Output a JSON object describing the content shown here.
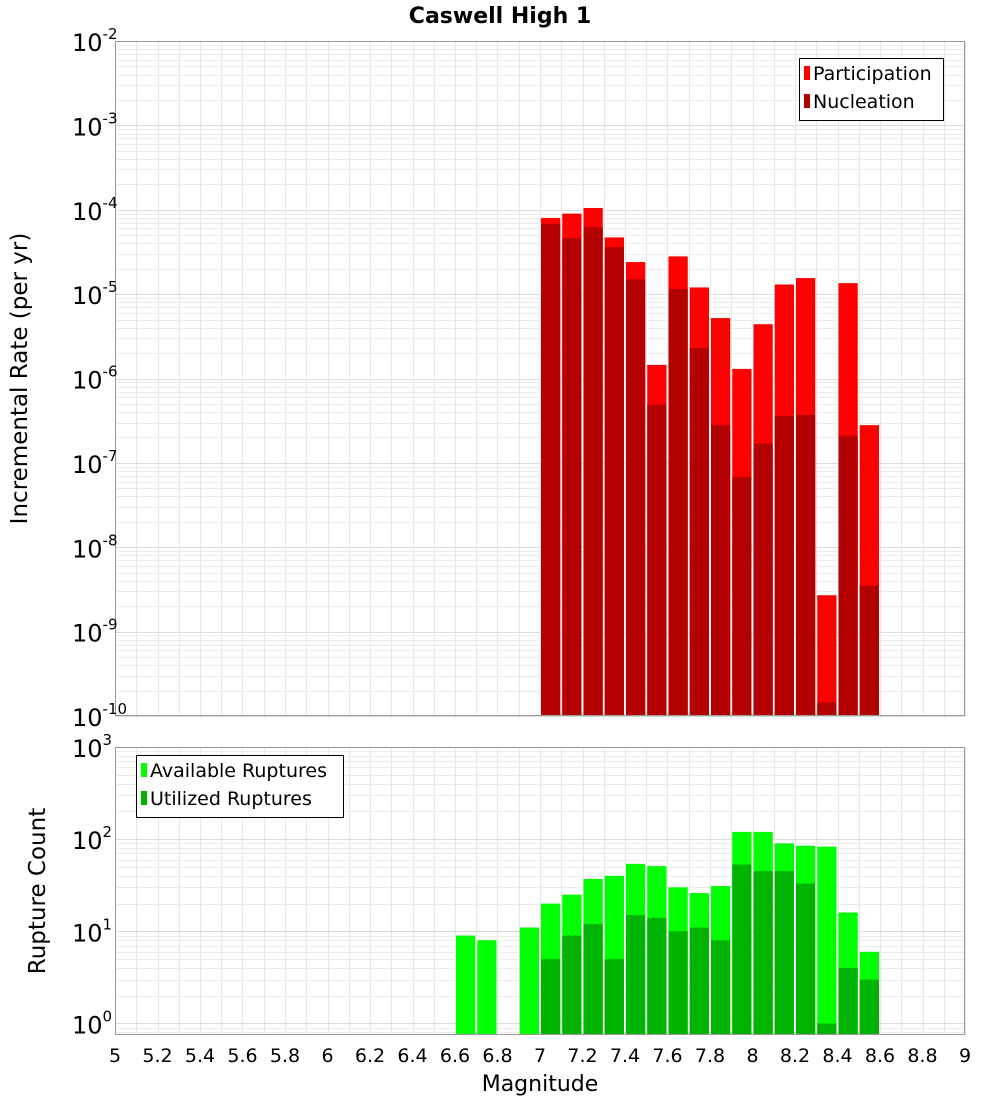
{
  "chart_data": [
    {
      "type": "bar",
      "title": "Caswell High 1",
      "xlabel": "",
      "ylabel": "Incremental Rate (per yr)",
      "yscale": "log",
      "xlim": [
        5,
        9
      ],
      "ylim": [
        1e-10,
        0.01
      ],
      "grid": true,
      "legend_position": "top-right",
      "y_tick_base": "10",
      "y_tick_exponents": [
        "-10",
        "-9",
        "-8",
        "-7",
        "-6",
        "-5",
        "-4",
        "-3",
        "-2"
      ],
      "x": [
        7.0,
        7.1,
        7.2,
        7.3,
        7.4,
        7.5,
        7.6,
        7.7,
        7.8,
        7.9,
        8.0,
        8.1,
        8.2,
        8.3,
        8.4,
        8.5
      ],
      "series": [
        {
          "name": "Participation",
          "color": "#ff0000",
          "values": [
            8e-05,
            9e-05,
            0.000105,
            4.7e-05,
            2.4e-05,
            1.45e-06,
            2.8e-05,
            1.2e-05,
            5.2e-06,
            1.3e-06,
            4.4e-06,
            1.3e-05,
            1.55e-05,
            2.7e-09,
            1.35e-05,
            2.8e-07
          ]
        },
        {
          "name": "Nucleation",
          "color": "#b30000",
          "values": [
            6.8e-05,
            4.6e-05,
            6.2e-05,
            3.6e-05,
            1.5e-05,
            4.9e-07,
            1.15e-05,
            2.3e-06,
            2.8e-07,
            6.8e-08,
            1.7e-07,
            3.6e-07,
            3.7e-07,
            1.45e-10,
            2.1e-07,
            3.5e-09
          ]
        }
      ]
    },
    {
      "type": "bar",
      "title": "",
      "xlabel": "Magnitude",
      "ylabel": "Rupture Count",
      "yscale": "log",
      "xlim": [
        5,
        9
      ],
      "ylim": [
        0.75,
        1000
      ],
      "grid": true,
      "legend_position": "top-left",
      "x_ticks": [
        "5",
        "5.2",
        "5.4",
        "5.6",
        "5.8",
        "6",
        "6.2",
        "6.4",
        "6.6",
        "6.8",
        "7",
        "7.2",
        "7.4",
        "7.6",
        "7.8",
        "8",
        "8.2",
        "8.4",
        "8.6",
        "8.8",
        "9"
      ],
      "y_tick_base": "10",
      "y_tick_exponents": [
        "0",
        "1",
        "2",
        "3"
      ],
      "x": [
        6.6,
        6.7,
        6.9,
        7.0,
        7.1,
        7.2,
        7.3,
        7.4,
        7.5,
        7.6,
        7.7,
        7.8,
        7.9,
        8.0,
        8.1,
        8.2,
        8.3,
        8.4,
        8.5
      ],
      "series": [
        {
          "name": "Available Ruptures",
          "color": "#00ff00",
          "values": [
            9,
            8,
            11,
            20,
            25,
            37,
            40,
            54,
            51,
            30,
            26,
            31,
            120,
            120,
            90,
            85,
            83,
            16,
            6
          ]
        },
        {
          "name": "Utilized Ruptures",
          "color": "#00b300",
          "values": [
            0,
            0,
            0,
            5,
            9,
            12,
            5,
            15,
            14,
            10,
            11,
            8,
            53,
            45,
            45,
            33,
            1,
            4,
            3
          ]
        }
      ]
    }
  ]
}
